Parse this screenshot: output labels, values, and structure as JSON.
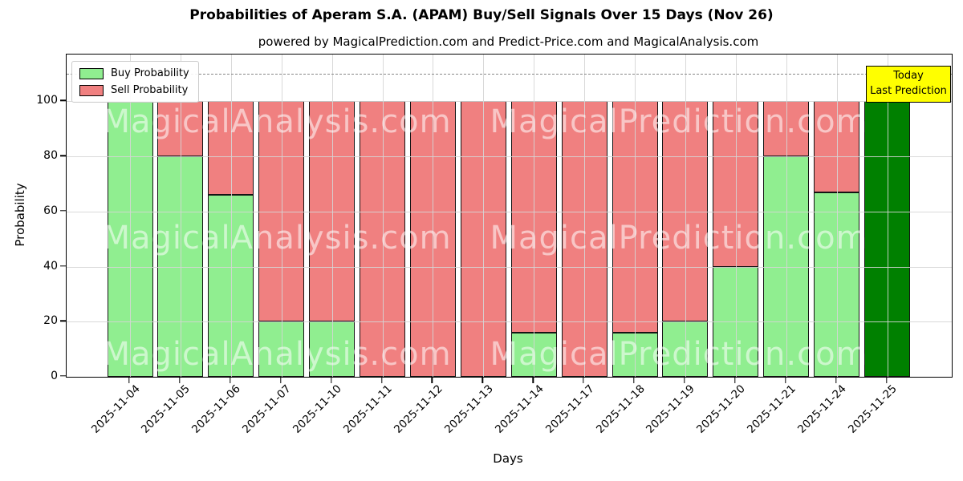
{
  "chart_data": {
    "type": "bar",
    "stacked": true,
    "title": "Probabilities of Aperam S.A. (APAM) Buy/Sell Signals Over 15 Days (Nov 26)",
    "subtitle": "powered by MagicalPrediction.com and Predict-Price.com and MagicalAnalysis.com",
    "xlabel": "Days",
    "ylabel": "Probability",
    "categories": [
      "2025-11-04",
      "2025-11-05",
      "2025-11-06",
      "2025-11-07",
      "2025-11-10",
      "2025-11-11",
      "2025-11-12",
      "2025-11-13",
      "2025-11-14",
      "2025-11-17",
      "2025-11-18",
      "2025-11-19",
      "2025-11-20",
      "2025-11-21",
      "2025-11-24",
      "2025-11-25"
    ],
    "series": [
      {
        "name": "Buy Probability",
        "color": "#90EE90",
        "values": [
          100,
          80,
          66,
          20,
          20,
          0,
          0,
          0,
          16,
          0,
          16,
          20,
          40,
          80,
          67,
          100
        ]
      },
      {
        "name": "Sell Probability",
        "color": "#F08080",
        "values": [
          0,
          20,
          34,
          80,
          80,
          100,
          100,
          100,
          84,
          100,
          84,
          80,
          60,
          20,
          33,
          0
        ]
      }
    ],
    "today_bar": {
      "category": "2025-11-25",
      "index": 15,
      "color": "#008000",
      "box_color": "#FFFF00",
      "label_line1": "Today",
      "label_line2": "Last Prediction"
    },
    "yticks": [
      0,
      20,
      40,
      60,
      80,
      100
    ],
    "ylim": [
      0,
      117
    ],
    "dashed_line_y": 110,
    "grid": true,
    "legend_position": "upper left",
    "bar_edge_color": "#000000",
    "watermarks": [
      "MagicalAnalysis.com",
      "MagicalPrediction.com"
    ]
  }
}
